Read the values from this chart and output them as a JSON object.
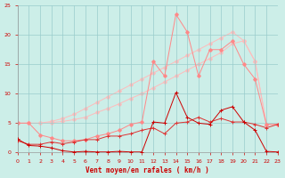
{
  "x": [
    0,
    1,
    2,
    3,
    4,
    5,
    6,
    7,
    8,
    9,
    10,
    11,
    12,
    13,
    14,
    15,
    16,
    17,
    18,
    19,
    20,
    21,
    22,
    23
  ],
  "line_dark1": [
    2.3,
    1.2,
    1.1,
    0.8,
    0.3,
    0.1,
    0.2,
    0.1,
    0.1,
    0.2,
    0.1,
    0.1,
    5.2,
    5.0,
    10.2,
    6.0,
    5.0,
    4.8,
    7.2,
    7.8,
    5.2,
    3.8,
    0.2,
    0.1
  ],
  "line_dark2": [
    2.0,
    1.4,
    1.4,
    1.8,
    1.5,
    1.8,
    2.2,
    2.2,
    2.8,
    2.8,
    3.2,
    3.8,
    4.2,
    3.2,
    5.0,
    5.2,
    6.0,
    5.2,
    5.8,
    5.2,
    5.2,
    4.8,
    4.2,
    4.8
  ],
  "line_pink_jagged": [
    5.0,
    5.0,
    3.0,
    2.5,
    2.0,
    2.0,
    2.2,
    2.8,
    3.2,
    3.8,
    4.8,
    5.2,
    15.5,
    13.0,
    23.5,
    20.5,
    13.0,
    17.5,
    17.5,
    19.0,
    15.0,
    12.5,
    4.8,
    4.8
  ],
  "line_pale1": [
    5.0,
    5.0,
    5.0,
    5.1,
    5.3,
    5.6,
    6.0,
    6.8,
    7.5,
    8.3,
    9.2,
    10.0,
    11.0,
    12.0,
    13.0,
    14.0,
    15.0,
    16.0,
    17.0,
    18.5,
    19.0,
    15.5,
    4.8,
    4.8
  ],
  "line_pale2": [
    5.0,
    5.0,
    5.0,
    5.3,
    5.8,
    6.5,
    7.5,
    8.5,
    9.5,
    10.5,
    11.5,
    12.5,
    13.5,
    14.5,
    15.5,
    16.5,
    17.5,
    18.5,
    19.5,
    20.5,
    19.0,
    15.5,
    4.8,
    4.8
  ],
  "color_dark_red": "#cc0000",
  "color_medium_red": "#dd3333",
  "color_light_pink": "#ff8888",
  "color_pale_pink": "#ffbbbb",
  "bg_color": "#cceee8",
  "grid_color": "#99cccc",
  "xlabel": "Vent moyen/en rafales ( km/h )",
  "ylim": [
    0,
    25
  ],
  "xlim": [
    0,
    23
  ]
}
